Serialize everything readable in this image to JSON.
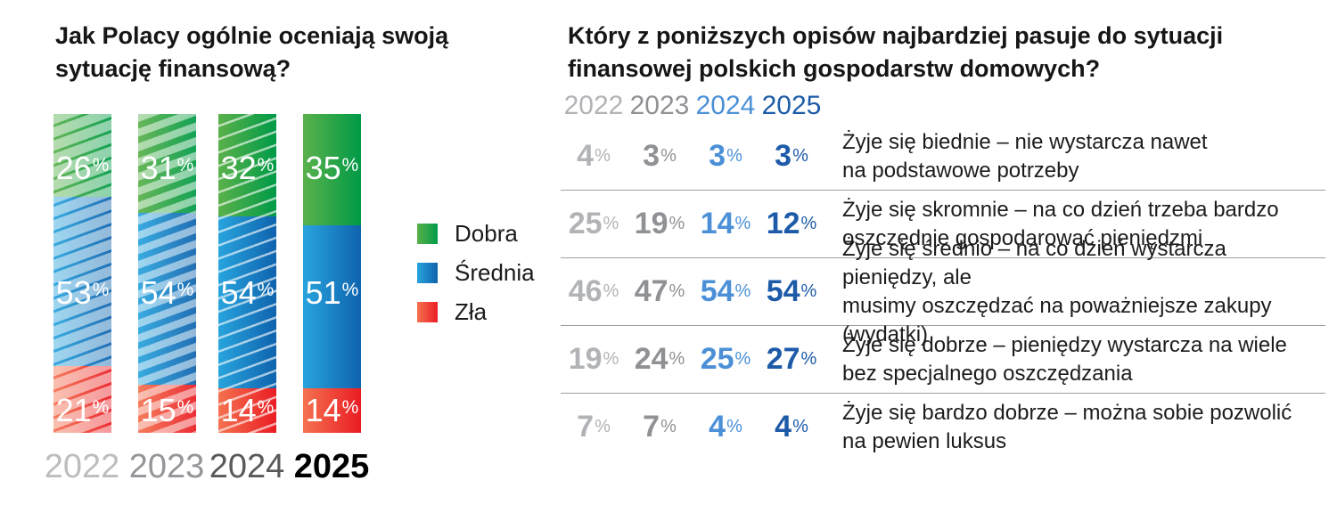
{
  "ui": {
    "percent": "%"
  },
  "left_chart": {
    "title_lines": [
      "Jak Polacy ogólnie oceniają swoją",
      "sytuację finansową?"
    ]
  },
  "right_table": {
    "title_lines": [
      "Który z poniższych opisów najbardziej pasuje do sytuacji",
      "finansowej polskich gospodarstw domowych?"
    ]
  },
  "colors": {
    "dobra": [
      "#5ab14b",
      "#009a47"
    ],
    "srednia": [
      "#28a4dd",
      "#0f63ae"
    ],
    "zla": [
      "#f4724f",
      "#ea1c24"
    ],
    "left_year_text": [
      "#bcbdbf",
      "#939598",
      "#58595b",
      "#000000"
    ],
    "table_year_text": [
      "#b1b3b6",
      "#8f9194",
      "#4b90d7",
      "#1d5ba8"
    ],
    "separator": "#9d9ea0",
    "bar_label_text": "#ffffff"
  },
  "chart_data": [
    {
      "type": "bar",
      "stacked": true,
      "unit": "%",
      "title": "Jak Polacy ogólnie oceniają swoją sytuację finansową?",
      "categories": [
        "2022",
        "2023",
        "2024",
        "2025"
      ],
      "series": [
        {
          "name": "Dobra",
          "values": [
            26,
            31,
            32,
            35
          ]
        },
        {
          "name": "Średnia",
          "values": [
            53,
            54,
            54,
            51
          ]
        },
        {
          "name": "Zła",
          "values": [
            21,
            15,
            14,
            14
          ]
        }
      ],
      "ylim": [
        0,
        100
      ],
      "legend_position": "right",
      "value_labels": "inside-white",
      "style_note": "2022-2024 bars diagonally hatched (fading with age), 2025 solid"
    },
    {
      "type": "table",
      "unit": "%",
      "title": "Który z poniższych opisów najbardziej pasuje do sytuacji finansowej polskich gospodarstw domowych?",
      "columns": [
        "2022",
        "2023",
        "2024",
        "2025"
      ],
      "rows": [
        {
          "values": [
            4,
            3,
            3,
            3
          ],
          "lines": [
            "Żyje się biednie – nie wystarcza nawet",
            "na podstawowe potrzeby"
          ]
        },
        {
          "values": [
            25,
            19,
            14,
            12
          ],
          "lines": [
            "Żyje się skromnie – na co dzień trzeba bardzo",
            "oszczędnie gospodarować pieniędzmi"
          ]
        },
        {
          "values": [
            46,
            47,
            54,
            54
          ],
          "lines": [
            "Żyje się średnio – na co dzień wystarcza pieniędzy, ale",
            "musimy oszczędzać na poważniejsze zakupy (wydatki)"
          ]
        },
        {
          "values": [
            19,
            24,
            25,
            27
          ],
          "lines": [
            "Żyje się dobrze – pieniędzy wystarcza na wiele",
            "bez specjalnego oszczędzania"
          ]
        },
        {
          "values": [
            7,
            7,
            4,
            4
          ],
          "lines": [
            "Żyje się bardzo dobrze – można sobie pozwolić",
            "na pewien luksus"
          ]
        }
      ]
    }
  ]
}
